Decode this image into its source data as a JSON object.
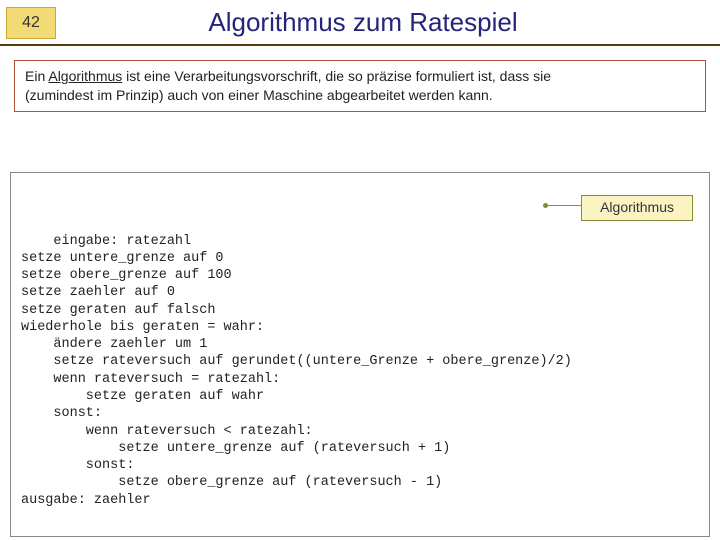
{
  "page_number": "42",
  "title": "Algorithmus zum Ratespiel",
  "definition": {
    "line1_prefix": "Ein ",
    "line1_underlined": "Algorithmus",
    "line1_suffix": " ist eine Verarbeitungsvorschrift, die so präzise formuliert ist, dass sie",
    "line2": "(zumindest im Prinzip) auch von einer Maschine abgearbeitet werden kann."
  },
  "algorithm_label": "Algorithmus",
  "pseudocode": "eingabe: ratezahl\nsetze untere_grenze auf 0\nsetze obere_grenze auf 100\nsetze zaehler auf 0\nsetze geraten auf falsch\nwiederhole bis geraten = wahr:\n    ändere zaehler um 1\n    setze rateversuch auf gerundet((untere_Grenze + obere_grenze)/2)\n    wenn rateversuch = ratezahl:\n        setze geraten auf wahr\n    sonst:\n        wenn rateversuch < ratezahl:\n            setze untere_grenze auf (rateversuch + 1)\n        sonst:\n            setze obere_grenze auf (rateversuch - 1)\nausgabe: zaehler",
  "colors": {
    "title_color": "#26247a",
    "header_underline": "#5a3a0a",
    "badge_bg": "#f2db74",
    "badge_border": "#c9a93a",
    "definition_border": "#b05038",
    "code_border": "#888888",
    "label_bg": "#fbf3c2",
    "label_border": "#8a8a3a",
    "text": "#222222",
    "background": "#ffffff"
  },
  "typography": {
    "title_fontsize": 26,
    "body_fontsize": 14,
    "code_fontsize": 13.5,
    "code_font": "Courier New"
  }
}
